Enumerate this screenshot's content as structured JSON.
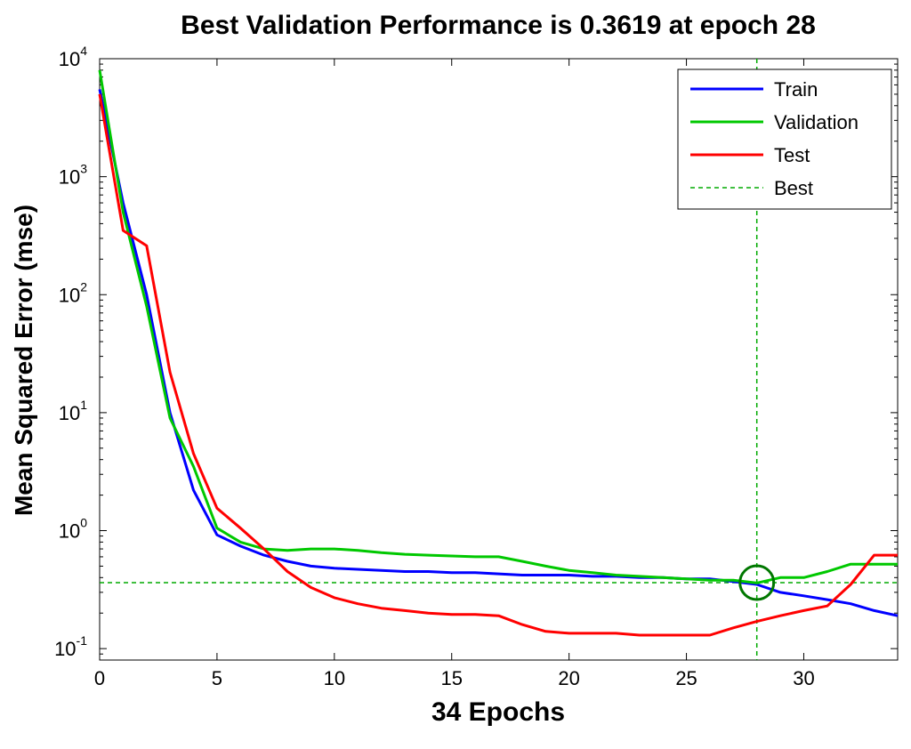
{
  "chart_data": {
    "type": "line",
    "title": "Best Validation Performance is 0.3619 at epoch 28",
    "xlabel": "34 Epochs",
    "ylabel": "Mean Squared Error  (mse)",
    "xlim": [
      0,
      34
    ],
    "ylim": [
      0.08,
      10000
    ],
    "yscale": "log",
    "x_ticks": [
      0,
      5,
      10,
      15,
      20,
      25,
      30
    ],
    "y_ticks": [
      {
        "value": 10000,
        "base": "10",
        "exp": "4"
      },
      {
        "value": 1000,
        "base": "10",
        "exp": "3"
      },
      {
        "value": 100,
        "base": "10",
        "exp": "2"
      },
      {
        "value": 10,
        "base": "10",
        "exp": "1"
      },
      {
        "value": 1,
        "base": "10",
        "exp": "0"
      },
      {
        "value": 0.1,
        "base": "10",
        "exp": "-1"
      }
    ],
    "x": [
      0,
      1,
      2,
      3,
      4,
      5,
      6,
      7,
      8,
      9,
      10,
      11,
      12,
      13,
      14,
      15,
      16,
      17,
      18,
      19,
      20,
      21,
      22,
      23,
      24,
      25,
      26,
      27,
      28,
      29,
      30,
      31,
      32,
      33,
      34
    ],
    "series": [
      {
        "name": "Train",
        "color": "#0000ff",
        "values": [
          5500,
          600,
          100,
          10,
          2.2,
          0.92,
          0.74,
          0.62,
          0.55,
          0.5,
          0.48,
          0.47,
          0.46,
          0.45,
          0.45,
          0.44,
          0.44,
          0.43,
          0.42,
          0.42,
          0.42,
          0.41,
          0.41,
          0.4,
          0.4,
          0.39,
          0.39,
          0.37,
          0.35,
          0.3,
          0.28,
          0.26,
          0.24,
          0.21,
          0.19
        ]
      },
      {
        "name": "Validation",
        "color": "#00c800",
        "values": [
          8000,
          500,
          80,
          9,
          3.5,
          1.05,
          0.8,
          0.7,
          0.68,
          0.7,
          0.7,
          0.68,
          0.65,
          0.63,
          0.62,
          0.61,
          0.6,
          0.6,
          0.55,
          0.5,
          0.46,
          0.44,
          0.42,
          0.41,
          0.4,
          0.39,
          0.38,
          0.38,
          0.36,
          0.4,
          0.4,
          0.45,
          0.52,
          0.52,
          0.52
        ]
      },
      {
        "name": "Test",
        "color": "#ff0000",
        "values": [
          5000,
          350,
          260,
          22,
          4.5,
          1.55,
          1.05,
          0.7,
          0.45,
          0.33,
          0.27,
          0.24,
          0.22,
          0.21,
          0.2,
          0.195,
          0.195,
          0.19,
          0.16,
          0.14,
          0.135,
          0.135,
          0.135,
          0.13,
          0.13,
          0.13,
          0.13,
          0.15,
          0.17,
          0.19,
          0.21,
          0.23,
          0.35,
          0.62,
          0.62
        ]
      }
    ],
    "best": {
      "name": "Best",
      "epoch": 28,
      "value": 0.3619,
      "color": "#00aa00"
    },
    "legend": {
      "position": "top-right",
      "entries": [
        "Train",
        "Validation",
        "Test",
        "Best"
      ]
    },
    "grid": false
  }
}
